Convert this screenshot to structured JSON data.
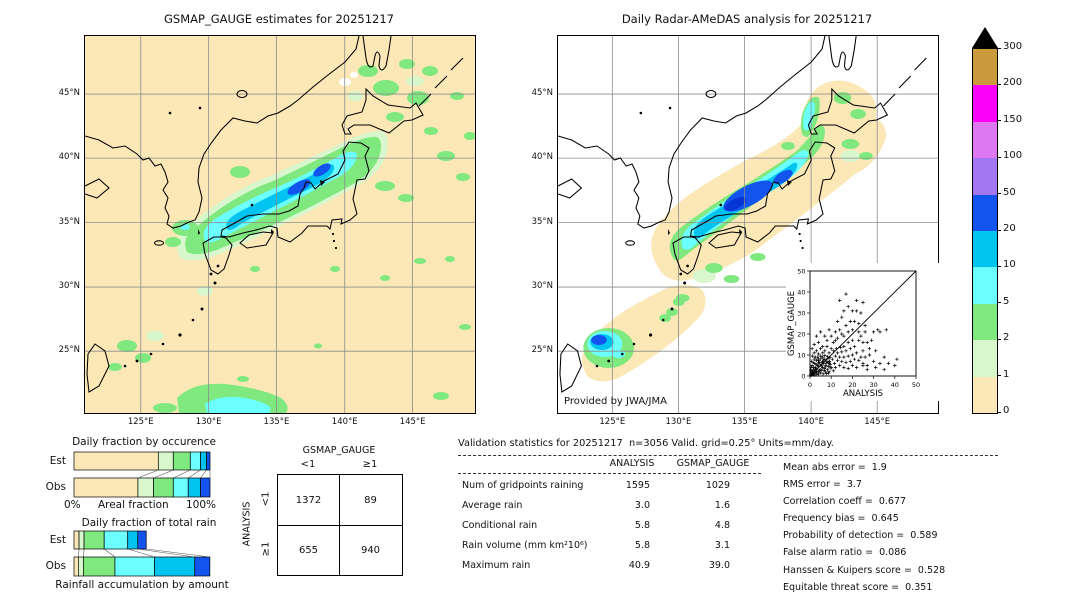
{
  "palette": {
    "levels": [
      0,
      1,
      2,
      5,
      10,
      20,
      50,
      100,
      150,
      200,
      300
    ],
    "labels": [
      "0",
      "1",
      "2",
      "5",
      "10",
      "20",
      "50",
      "100",
      "150",
      "200",
      "300"
    ],
    "colors": [
      "#fbe8b6",
      "#d9f7cc",
      "#7fe87f",
      "#6bffff",
      "#00c3f0",
      "#1353ee",
      "#a377f2",
      "#dd77f2",
      "#fb00fb",
      "#ca9a3d"
    ],
    "over_color": "#000000",
    "units": "mm/day"
  },
  "geo": {
    "lon_fracs": [
      0.143,
      0.317,
      0.491,
      0.666,
      0.84
    ],
    "lat_fracs": [
      0.154,
      0.324,
      0.495,
      0.666,
      0.836
    ]
  },
  "chart_data": [
    {
      "type": "map",
      "id": "gsmap",
      "title": "GSMAP_GAUGE estimates for 20251217",
      "lon_ticks": [
        "125°E",
        "130°E",
        "135°E",
        "140°E",
        "145°E"
      ],
      "lat_ticks": [
        "45°N",
        "40°N",
        "35°N",
        "30°N",
        "25°N"
      ],
      "lon_range_deg": [
        121,
        149.6
      ],
      "lat_range_deg": [
        20.2,
        49.5
      ],
      "units": "mm/day",
      "levels": [
        0,
        1,
        2,
        5,
        10,
        20,
        50,
        100,
        150,
        200,
        300
      ],
      "description": "Contour map of GSMAP_GAUGE daily rain; band of 2-50 mm/day along the Sea of Japan coast from Kyushu to Tohoku, scattered 1-5 mm/day patches elsewhere, background 0-1 mm/day"
    },
    {
      "type": "map",
      "id": "radar",
      "title": "Daily Radar-AMeDAS analysis for 20251217",
      "credit": "Provided by JWA/JMA",
      "lon_ticks": [
        "125°E",
        "130°E",
        "135°E",
        "140°E",
        "145°E"
      ],
      "lat_ticks": [
        "45°N",
        "40°N",
        "35°N",
        "30°N",
        "25°N"
      ],
      "lon_range_deg": [
        121,
        149.6
      ],
      "lat_range_deg": [
        20.2,
        49.5
      ],
      "units": "mm/day",
      "levels": [
        0,
        1,
        2,
        5,
        10,
        20,
        50,
        100,
        150,
        200,
        300
      ],
      "description": "Radar-AMeDAS analysis over radar coverage only (white = no data); rain band 2-50 mm/day from Kyushu through Hokkaido along the Sea of Japan side, separate cell near Okinawa"
    },
    {
      "type": "bar",
      "id": "occurrence",
      "subtype": "stacked-horizontal-fraction",
      "title": "Daily fraction by occurence",
      "xlabel_left": "0%",
      "xlabel_center": "Areal fraction",
      "xlabel_right": "100%",
      "bins": [
        "0-1",
        "1-2",
        "2-5",
        "5-10",
        "10-20",
        "20-50"
      ],
      "series": [
        {
          "name": "Est",
          "values": [
            0.62,
            0.11,
            0.125,
            0.075,
            0.045,
            0.025
          ]
        },
        {
          "name": "Obs",
          "values": [
            0.47,
            0.115,
            0.145,
            0.11,
            0.09,
            0.07
          ]
        }
      ]
    },
    {
      "type": "bar",
      "id": "total_rain",
      "subtype": "stacked-horizontal-fraction",
      "title": "Daily fraction of total rain",
      "caption": "Rainfall accumulation by amount",
      "bins": [
        "0-1",
        "1-2",
        "2-5",
        "5-10",
        "10-20",
        "20-50"
      ],
      "series": [
        {
          "name": "Est",
          "values": [
            0.037,
            0.037,
            0.148,
            0.173,
            0.074,
            0.062
          ]
        },
        {
          "name": "Obs",
          "values": [
            0.032,
            0.037,
            0.232,
            0.291,
            0.296,
            0.111
          ]
        }
      ]
    },
    {
      "type": "table",
      "id": "contingency",
      "col_group": "GSMAP_GAUGE",
      "row_group": "ANALYSIS",
      "col_labels": [
        "<1",
        "≥1"
      ],
      "row_labels": [
        "<1",
        "≥1"
      ],
      "values": [
        [
          1372,
          89
        ],
        [
          655,
          940
        ]
      ]
    },
    {
      "type": "table",
      "id": "validation",
      "title": "Validation statistics for 20251217  n=3056 Valid. grid=0.25° Units=mm/day.",
      "columns": [
        "ANALYSIS",
        "GSMAP_GAUGE"
      ],
      "rows": [
        {
          "label": "Num of gridpoints raining",
          "analysis": "1595",
          "gsmap": "1029"
        },
        {
          "label": "Average rain",
          "analysis": "3.0",
          "gsmap": "1.6"
        },
        {
          "label": "Conditional rain",
          "analysis": "5.8",
          "gsmap": "4.8"
        },
        {
          "label": "Rain volume (mm km²10⁶)",
          "analysis": "5.8",
          "gsmap": "3.1"
        },
        {
          "label": "Maximum rain",
          "analysis": "40.9",
          "gsmap": "39.0"
        }
      ],
      "scores": [
        {
          "label": "Mean abs error",
          "value": "1.9"
        },
        {
          "label": "RMS error",
          "value": "3.7"
        },
        {
          "label": "Correlation coeff",
          "value": "0.677"
        },
        {
          "label": "Frequency bias",
          "value": "0.645"
        },
        {
          "label": "Probability of detection",
          "value": "0.589"
        },
        {
          "label": "False alarm ratio",
          "value": "0.086"
        },
        {
          "label": "Hanssen & Kuipers score",
          "value": "0.528"
        },
        {
          "label": "Equitable threat score",
          "value": "0.351"
        }
      ]
    },
    {
      "type": "scatter",
      "id": "inset",
      "xlabel": "ANALYSIS",
      "ylabel": "GSMAP_GAUGE",
      "xlim": [
        0,
        50
      ],
      "ylim": [
        0,
        50
      ],
      "ticks": [
        0,
        10,
        20,
        30,
        40,
        50
      ],
      "diagonal": true,
      "points": [
        [
          0.3,
          0.5
        ],
        [
          0.5,
          1.2
        ],
        [
          0.8,
          0.4
        ],
        [
          1,
          2
        ],
        [
          1.2,
          0.8
        ],
        [
          1.5,
          3
        ],
        [
          1.8,
          1.2
        ],
        [
          2,
          0.5
        ],
        [
          2.2,
          2.5
        ],
        [
          2.5,
          4
        ],
        [
          2.8,
          1.8
        ],
        [
          3,
          3.2
        ],
        [
          3.2,
          0.6
        ],
        [
          3.5,
          5
        ],
        [
          3.8,
          2.2
        ],
        [
          4,
          1
        ],
        [
          4.2,
          4.5
        ],
        [
          4.5,
          6.5
        ],
        [
          4.8,
          3
        ],
        [
          5,
          1.5
        ],
        [
          5.2,
          5.5
        ],
        [
          5.5,
          2.8
        ],
        [
          5.8,
          7
        ],
        [
          6,
          4
        ],
        [
          6.2,
          1
        ],
        [
          6.5,
          6
        ],
        [
          6.8,
          3.5
        ],
        [
          7,
          8
        ],
        [
          7.2,
          2
        ],
        [
          7.5,
          5
        ],
        [
          7.8,
          1.2
        ],
        [
          8,
          6.8
        ],
        [
          8.2,
          3
        ],
        [
          8.5,
          8.5
        ],
        [
          8.8,
          4.5
        ],
        [
          9,
          2
        ],
        [
          9.2,
          7
        ],
        [
          9.5,
          5.5
        ],
        [
          9.8,
          3.8
        ],
        [
          1,
          5
        ],
        [
          1.5,
          6.5
        ],
        [
          2,
          8
        ],
        [
          2.5,
          9
        ],
        [
          3,
          7.5
        ],
        [
          0.5,
          4
        ],
        [
          0.8,
          7
        ],
        [
          1.2,
          9.5
        ],
        [
          3.5,
          9
        ],
        [
          4,
          8
        ],
        [
          5,
          9.5
        ],
        [
          6,
          9
        ],
        [
          7,
          9.8
        ],
        [
          0.4,
          2.8
        ],
        [
          1.7,
          4.2
        ],
        [
          2.3,
          6
        ],
        [
          3.1,
          1.9
        ],
        [
          4.4,
          2.6
        ],
        [
          5.6,
          4.8
        ],
        [
          6.4,
          7.6
        ],
        [
          7.7,
          6.2
        ],
        [
          8.3,
          9.2
        ],
        [
          9.4,
          8.8
        ],
        [
          2.7,
          3.4
        ],
        [
          3.9,
          6.2
        ],
        [
          5.1,
          8.2
        ],
        [
          6.7,
          2.6
        ],
        [
          8.7,
          1.4
        ],
        [
          9.1,
          5.9
        ],
        [
          0.9,
          1.8
        ],
        [
          1.4,
          2.4
        ],
        [
          2.1,
          1.4
        ],
        [
          2.9,
          5.4
        ],
        [
          4.1,
          7.4
        ],
        [
          5.9,
          6.4
        ],
        [
          7.4,
          4.4
        ],
        [
          8.9,
          6.6
        ],
        [
          10,
          4
        ],
        [
          10.5,
          8
        ],
        [
          11,
          2.5
        ],
        [
          11,
          12
        ],
        [
          11.5,
          6
        ],
        [
          12,
          9.5
        ],
        [
          12,
          4
        ],
        [
          12.5,
          13
        ],
        [
          13,
          7.5
        ],
        [
          13,
          11
        ],
        [
          14,
          5
        ],
        [
          14,
          9
        ],
        [
          14.5,
          13.5
        ],
        [
          15,
          7
        ],
        [
          15,
          11.5
        ],
        [
          16,
          4
        ],
        [
          16,
          9
        ],
        [
          16,
          14
        ],
        [
          17,
          6.5
        ],
        [
          17,
          12
        ],
        [
          18,
          3.5
        ],
        [
          18,
          9.5
        ],
        [
          18,
          16
        ],
        [
          19,
          7
        ],
        [
          19,
          13
        ],
        [
          20,
          5
        ],
        [
          20,
          10
        ],
        [
          20,
          17
        ],
        [
          21,
          8
        ],
        [
          21,
          14
        ],
        [
          22,
          4
        ],
        [
          22,
          11
        ],
        [
          23,
          7.5
        ],
        [
          23,
          17
        ],
        [
          24,
          9
        ],
        [
          25,
          6
        ],
        [
          25,
          12
        ],
        [
          26,
          9
        ],
        [
          27,
          5
        ],
        [
          10,
          13
        ],
        [
          9,
          11
        ],
        [
          8,
          14
        ],
        [
          7,
          12
        ],
        [
          6,
          11
        ],
        [
          5,
          13
        ],
        [
          4,
          10.5
        ],
        [
          3,
          12
        ],
        [
          11,
          16
        ],
        [
          13,
          18
        ],
        [
          15,
          20
        ],
        [
          12,
          21
        ],
        [
          10,
          19
        ],
        [
          9,
          22
        ],
        [
          14,
          22
        ],
        [
          16,
          19
        ],
        [
          18,
          21
        ],
        [
          20,
          22
        ],
        [
          17,
          24
        ],
        [
          19,
          26
        ],
        [
          21,
          26
        ],
        [
          23,
          25
        ],
        [
          16,
          31
        ],
        [
          20,
          31
        ],
        [
          22,
          31
        ],
        [
          24,
          30
        ],
        [
          14,
          36
        ],
        [
          17,
          39
        ],
        [
          22,
          36
        ],
        [
          25,
          35
        ],
        [
          18,
          33
        ],
        [
          15,
          28
        ],
        [
          13,
          26
        ],
        [
          23,
          21
        ],
        [
          26,
          21
        ],
        [
          30,
          21
        ],
        [
          32,
          22
        ],
        [
          33,
          21
        ],
        [
          36,
          22
        ],
        [
          25,
          16
        ],
        [
          27,
          16
        ],
        [
          28,
          13
        ],
        [
          24,
          19
        ],
        [
          28,
          10
        ],
        [
          30,
          7
        ],
        [
          33,
          6
        ],
        [
          35,
          9
        ],
        [
          37,
          6
        ],
        [
          40,
          5
        ],
        [
          41,
          8
        ],
        [
          25,
          5
        ],
        [
          27,
          3
        ],
        [
          31,
          4
        ],
        [
          35,
          3
        ],
        [
          29,
          17
        ],
        [
          31,
          12
        ],
        [
          26,
          24
        ],
        [
          12,
          17
        ],
        [
          8,
          17
        ],
        [
          6,
          14
        ],
        [
          4,
          16
        ],
        [
          2,
          11
        ],
        [
          1,
          13
        ],
        [
          3,
          19
        ],
        [
          5,
          21
        ],
        [
          7,
          19
        ],
        [
          2,
          15
        ]
      ]
    }
  ]
}
